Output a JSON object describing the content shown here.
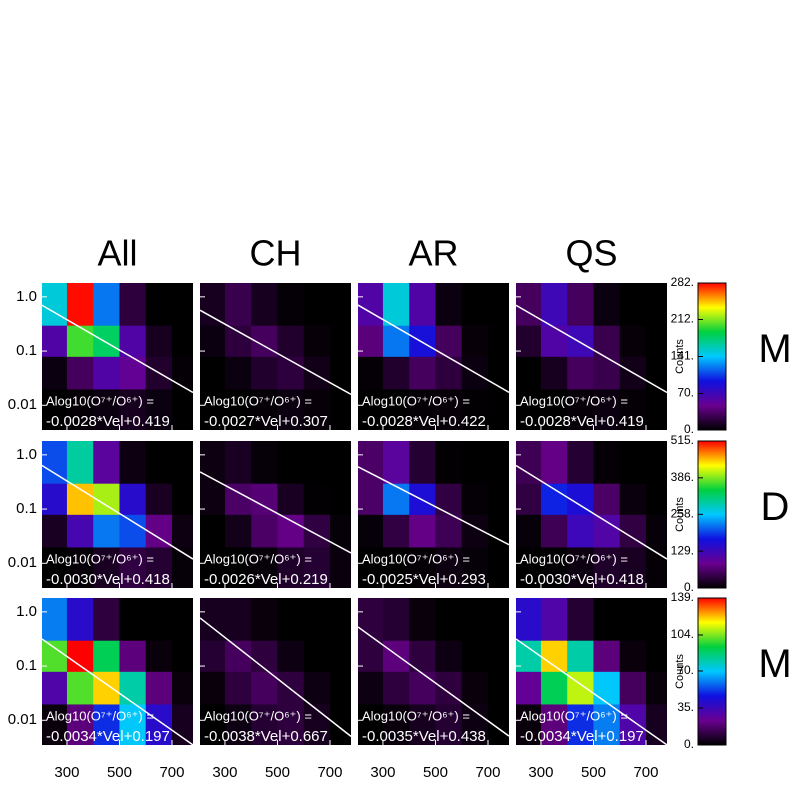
{
  "chart_data": {
    "type": "heatmap",
    "column_titles": [
      "All",
      "CH",
      "AR",
      "QS"
    ],
    "row_labels": [
      "M",
      "D",
      "M"
    ],
    "colorbar_label": "Counts",
    "equation_label": "Alog10(O⁷⁺/O⁶⁺) =",
    "log_y": true,
    "xlim": [
      205,
      780
    ],
    "ylim": [
      0.0035,
      1.8
    ],
    "xticks": [
      300,
      500,
      700
    ],
    "yticks": [
      {
        "value": 1,
        "label": "1.0"
      },
      0.1,
      0.01
    ],
    "xbins": [
      205,
      300,
      400,
      500,
      600,
      700,
      780
    ],
    "ybins": [
      0.0035,
      0.02,
      0.08,
      0.3,
      1.8
    ],
    "colormap": [
      "#000000",
      "#6a0090",
      "#1010e0",
      "#00c8ff",
      "#00d040",
      "#ffff00",
      "#ff0000"
    ],
    "fit_color": "#ffffff",
    "panels": [
      [
        {
          "counts": [
            [
              0,
              2,
              5,
              10,
              5,
              0
            ],
            [
              5,
              30,
              60,
              50,
              15,
              2
            ],
            [
              60,
              200,
              180,
              60,
              10,
              0
            ],
            [
              150,
              280,
              120,
              20,
              0,
              0
            ]
          ],
          "fit": {
            "slope": -0.0028,
            "intercept": 0.419,
            "label": "-0.0028*Vel+0.419"
          }
        },
        {
          "counts": [
            [
              0,
              0,
              2,
              5,
              3,
              0
            ],
            [
              0,
              5,
              15,
              20,
              8,
              0
            ],
            [
              5,
              20,
              30,
              15,
              3,
              0
            ],
            [
              10,
              25,
              10,
              2,
              0,
              0
            ]
          ],
          "fit": {
            "slope": -0.0027,
            "intercept": 0.307,
            "label": "-0.0027*Vel+0.307"
          }
        },
        {
          "counts": [
            [
              0,
              0,
              2,
              3,
              1,
              0
            ],
            [
              2,
              15,
              30,
              20,
              5,
              0
            ],
            [
              40,
              120,
              90,
              30,
              3,
              0
            ],
            [
              60,
              150,
              60,
              5,
              0,
              0
            ]
          ],
          "fit": {
            "slope": -0.0028,
            "intercept": 0.422,
            "label": "-0.0028*Vel+0.422"
          }
        },
        {
          "counts": [
            [
              0,
              0,
              3,
              5,
              2,
              0
            ],
            [
              0,
              10,
              30,
              25,
              8,
              0
            ],
            [
              15,
              60,
              70,
              25,
              3,
              0
            ],
            [
              30,
              70,
              30,
              5,
              0,
              0
            ]
          ],
          "fit": {
            "slope": -0.0028,
            "intercept": 0.419,
            "label": "-0.0028*Vel+0.419"
          }
        }
      ],
      [
        {
          "counts": [
            [
              0,
              5,
              20,
              40,
              30,
              5
            ],
            [
              20,
              120,
              220,
              200,
              80,
              10
            ],
            [
              150,
              450,
              400,
              150,
              20,
              0
            ],
            [
              200,
              300,
              100,
              10,
              0,
              0
            ]
          ],
          "fit": {
            "slope": -0.003,
            "intercept": 0.418,
            "label": "-0.0030*Vel+0.418"
          }
        },
        {
          "counts": [
            [
              0,
              0,
              5,
              25,
              30,
              8
            ],
            [
              0,
              15,
              60,
              80,
              40,
              5
            ],
            [
              10,
              60,
              70,
              20,
              2,
              0
            ],
            [
              10,
              20,
              5,
              0,
              0,
              0
            ]
          ],
          "fit": {
            "slope": -0.0026,
            "intercept": 0.219,
            "label": "-0.0026*Vel+0.219"
          }
        },
        {
          "counts": [
            [
              0,
              0,
              3,
              10,
              5,
              0
            ],
            [
              5,
              40,
              80,
              50,
              10,
              0
            ],
            [
              60,
              220,
              160,
              40,
              3,
              0
            ],
            [
              60,
              100,
              30,
              2,
              0,
              0
            ]
          ],
          "fit": {
            "slope": -0.0025,
            "intercept": 0.293,
            "label": "-0.0025*Vel+0.293"
          }
        },
        {
          "counts": [
            [
              0,
              2,
              10,
              25,
              20,
              3
            ],
            [
              5,
              50,
              130,
              110,
              40,
              5
            ],
            [
              40,
              180,
              160,
              60,
              8,
              0
            ],
            [
              50,
              80,
              30,
              3,
              0,
              0
            ]
          ],
          "fit": {
            "slope": -0.003,
            "intercept": 0.418,
            "label": "-0.0030*Vel+0.418"
          }
        }
      ],
      [
        {
          "counts": [
            [
              2,
              20,
              50,
              70,
              40,
              5
            ],
            [
              30,
              100,
              120,
              80,
              20,
              2
            ],
            [
              100,
              139,
              90,
              20,
              2,
              0
            ],
            [
              60,
              40,
              10,
              0,
              0,
              0
            ]
          ],
          "fit": {
            "slope": -0.0034,
            "intercept": 0.197,
            "label": "-0.0034*Vel+0.197"
          }
        },
        {
          "counts": [
            [
              0,
              3,
              8,
              10,
              5,
              0
            ],
            [
              2,
              10,
              15,
              10,
              3,
              0
            ],
            [
              8,
              15,
              10,
              3,
              0,
              0
            ],
            [
              5,
              5,
              2,
              0,
              0,
              0
            ]
          ],
          "fit": {
            "slope": -0.0038,
            "intercept": 0.667,
            "label": "-0.0038*Vel+0.667"
          }
        },
        {
          "counts": [
            [
              0,
              2,
              5,
              8,
              3,
              0
            ],
            [
              3,
              10,
              15,
              10,
              2,
              0
            ],
            [
              10,
              20,
              10,
              3,
              0,
              0
            ],
            [
              10,
              8,
              2,
              0,
              0,
              0
            ]
          ],
          "fit": {
            "slope": -0.0035,
            "intercept": 0.438,
            "label": "-0.0035*Vel+0.438"
          }
        },
        {
          "counts": [
            [
              2,
              20,
              50,
              60,
              30,
              5
            ],
            [
              25,
              90,
              110,
              70,
              15,
              2
            ],
            [
              80,
              120,
              80,
              20,
              2,
              0
            ],
            [
              40,
              30,
              8,
              0,
              0,
              0
            ]
          ],
          "fit": {
            "slope": -0.0034,
            "intercept": 0.197,
            "label": "-0.0034*Vel+0.197"
          }
        }
      ]
    ],
    "colorbars": [
      {
        "lim": [
          0,
          282
        ],
        "ticks": [
          {
            "value": 0,
            "label": "0."
          },
          {
            "value": 70,
            "label": "70."
          },
          {
            "value": 141,
            "label": "141."
          },
          {
            "value": 212,
            "label": "212."
          },
          {
            "value": 282,
            "label": "282."
          }
        ]
      },
      {
        "lim": [
          0,
          515
        ],
        "ticks": [
          {
            "value": 0,
            "label": "0."
          },
          {
            "value": 129,
            "label": "129."
          },
          {
            "value": 258,
            "label": "258."
          },
          {
            "value": 386,
            "label": "386."
          },
          {
            "value": 515,
            "label": "515."
          }
        ]
      },
      {
        "lim": [
          0,
          139
        ],
        "ticks": [
          {
            "value": 0,
            "label": "0."
          },
          {
            "value": 35,
            "label": "35."
          },
          {
            "value": 70,
            "label": "70."
          },
          {
            "value": 104,
            "label": "104."
          },
          {
            "value": 139,
            "label": "139."
          }
        ]
      }
    ]
  }
}
